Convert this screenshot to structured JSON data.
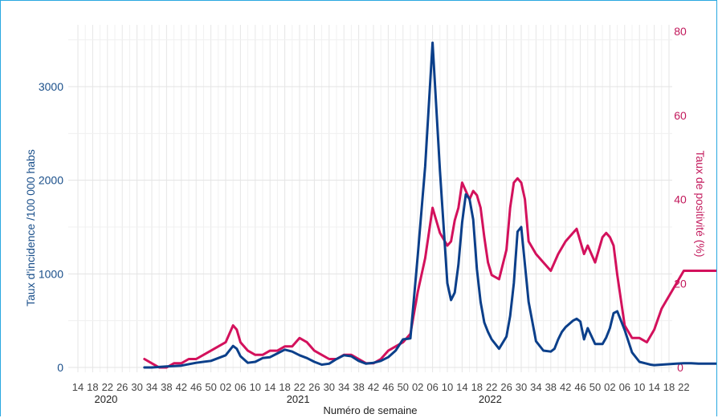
{
  "chart_data": {
    "type": "line",
    "xlabel": "Numéro de semaine",
    "ylabel": "Taux d'incidence /100 000 habs",
    "y2label": "Taux de positivité (%)",
    "ylim": [
      0,
      3500
    ],
    "y2lim": [
      0,
      80
    ],
    "yticks": [
      "0",
      "1000",
      "2000",
      "3000"
    ],
    "y2ticks": [
      "0",
      "20",
      "40",
      "60",
      "80"
    ],
    "x_tick_labels": [
      "14",
      "18",
      "22",
      "26",
      "30",
      "34",
      "38",
      "42",
      "46",
      "50",
      "02",
      "06",
      "10",
      "14",
      "18",
      "22",
      "26",
      "30",
      "34",
      "38",
      "42",
      "46",
      "50",
      "02",
      "06",
      "10",
      "14",
      "18",
      "22",
      "26",
      "30",
      "34",
      "38",
      "42",
      "46",
      "50",
      "02",
      "06",
      "10",
      "14",
      "18",
      "22"
    ],
    "year_labels": [
      "2020",
      "2021",
      "2022"
    ],
    "grid": true,
    "colors": {
      "incidence": "#0b3f8a",
      "positivity": "#d3115c"
    },
    "series": [
      {
        "axis": "left",
        "x": [
          18,
          20,
          24,
          28,
          32,
          36,
          40,
          42,
          43,
          44,
          46,
          48,
          50,
          52,
          54,
          56,
          58,
          60,
          62,
          64,
          66,
          68,
          70,
          72,
          74,
          76,
          78,
          80,
          82,
          84,
          86,
          88,
          90,
          92,
          94,
          96,
          98,
          100,
          101,
          102,
          103,
          104,
          105,
          106,
          107,
          108,
          109,
          110,
          111,
          112,
          113,
          114,
          116,
          117,
          118,
          119,
          120,
          122,
          124,
          126,
          128,
          129,
          130,
          131,
          132,
          134,
          135,
          136,
          137,
          138,
          140,
          142,
          143,
          144,
          145,
          146,
          148,
          150,
          152,
          154,
          155,
          156,
          158,
          160,
          162,
          164,
          166,
          168,
          170,
          172,
          174
        ],
        "values": [
          0,
          0,
          10,
          20,
          50,
          70,
          130,
          230,
          200,
          120,
          50,
          60,
          100,
          110,
          150,
          190,
          170,
          130,
          100,
          60,
          30,
          40,
          90,
          130,
          120,
          70,
          40,
          50,
          70,
          110,
          180,
          300,
          310,
          1200,
          2150,
          3470,
          2100,
          900,
          720,
          800,
          1100,
          1550,
          1850,
          1800,
          1580,
          1050,
          700,
          480,
          380,
          300,
          250,
          200,
          330,
          550,
          900,
          1450,
          1500,
          700,
          280,
          180,
          170,
          200,
          300,
          380,
          430,
          500,
          520,
          490,
          300,
          420,
          250,
          250,
          320,
          420,
          580,
          600,
          400,
          160,
          60,
          40,
          30,
          25,
          30,
          35,
          40,
          45,
          45,
          40,
          40,
          40,
          40
        ],
        "label": ""
      },
      {
        "axis": "right",
        "x": [
          18,
          20,
          22,
          24,
          26,
          28,
          30,
          32,
          34,
          36,
          38,
          40,
          41,
          42,
          43,
          44,
          46,
          48,
          50,
          52,
          54,
          56,
          58,
          60,
          62,
          64,
          66,
          68,
          70,
          72,
          74,
          76,
          78,
          80,
          82,
          84,
          86,
          88,
          90,
          92,
          94,
          96,
          98,
          100,
          101,
          102,
          103,
          104,
          105,
          106,
          107,
          108,
          109,
          110,
          111,
          112,
          114,
          116,
          117,
          118,
          119,
          120,
          121,
          122,
          124,
          126,
          128,
          130,
          132,
          134,
          135,
          136,
          137,
          138,
          140,
          142,
          143,
          144,
          145,
          146,
          148,
          150,
          152,
          154,
          156,
          158,
          160,
          162,
          164,
          166,
          168,
          170,
          172,
          174
        ],
        "values": [
          2,
          1,
          0,
          0,
          1,
          1,
          2,
          2,
          3,
          4,
          5,
          6,
          8,
          10,
          9,
          6,
          4,
          3,
          3,
          4,
          4,
          5,
          5,
          7,
          6,
          4,
          3,
          2,
          2,
          3,
          3,
          2,
          1,
          1,
          2,
          4,
          5,
          6,
          8,
          18,
          26,
          38,
          32,
          29,
          30,
          35,
          38,
          44,
          42,
          40,
          42,
          41,
          38,
          31,
          25,
          22,
          21,
          28,
          38,
          44,
          45,
          44,
          40,
          30,
          27,
          25,
          23,
          27,
          30,
          32,
          33,
          30,
          27,
          29,
          25,
          31,
          32,
          31,
          29,
          22,
          10,
          7,
          7,
          6,
          9,
          14,
          17,
          20,
          23,
          23,
          23,
          23,
          23,
          23
        ],
        "label": ""
      }
    ]
  }
}
